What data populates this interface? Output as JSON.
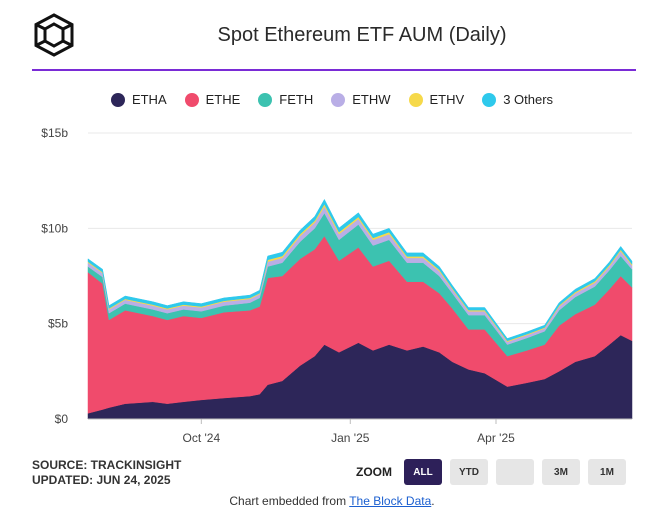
{
  "header": {
    "title": "Spot Ethereum ETF AUM (Daily)"
  },
  "legend": [
    {
      "label": "ETHA",
      "color": "#2d2659"
    },
    {
      "label": "ETHE",
      "color": "#f04b6c"
    },
    {
      "label": "FETH",
      "color": "#3cc2b0"
    },
    {
      "label": "ETHW",
      "color": "#b9aee6"
    },
    {
      "label": "ETHV",
      "color": "#f6d94a"
    },
    {
      "label": "3 Others",
      "color": "#2ec9ec"
    }
  ],
  "footer": {
    "source": "SOURCE: TRACKINSIGHT",
    "updated": "UPDATED: JUN 24, 2025",
    "zoom_label": "ZOOM",
    "zoom_buttons": [
      "ALL",
      "YTD",
      "",
      "3M",
      "1M"
    ],
    "embed_prefix": "Chart embedded from ",
    "embed_link": "The Block Data",
    "embed_suffix": "."
  },
  "chart_data": {
    "type": "area",
    "stacked": true,
    "ylim": [
      0,
      15
    ],
    "y_ticks": [
      "$0",
      "$5b",
      "$10b",
      "$15b"
    ],
    "y_tick_values": [
      0,
      5,
      10,
      15
    ],
    "x_ticks": [
      "Oct '24",
      "Jan '25",
      "Apr '25"
    ],
    "x_tick_dates": [
      "2024-10-01",
      "2025-01-01",
      "2025-04-01"
    ],
    "x_range": [
      "2024-07-23",
      "2025-06-24"
    ],
    "grid": true,
    "legend_position": "top",
    "series": [
      {
        "name": "ETHA",
        "color": "#2d2659",
        "points": [
          [
            "2024-07-23",
            0.3
          ],
          [
            "2024-08-01",
            0.5
          ],
          [
            "2024-08-05",
            0.6
          ],
          [
            "2024-08-15",
            0.8
          ],
          [
            "2024-09-01",
            0.9
          ],
          [
            "2024-09-10",
            0.8
          ],
          [
            "2024-09-20",
            0.9
          ],
          [
            "2024-10-01",
            1.0
          ],
          [
            "2024-10-15",
            1.1
          ],
          [
            "2024-10-31",
            1.2
          ],
          [
            "2024-11-06",
            1.3
          ],
          [
            "2024-11-11",
            1.8
          ],
          [
            "2024-11-20",
            2.0
          ],
          [
            "2024-12-01",
            2.8
          ],
          [
            "2024-12-10",
            3.3
          ],
          [
            "2024-12-16",
            3.9
          ],
          [
            "2024-12-25",
            3.5
          ],
          [
            "2025-01-06",
            4.0
          ],
          [
            "2025-01-15",
            3.6
          ],
          [
            "2025-01-25",
            3.9
          ],
          [
            "2025-02-05",
            3.6
          ],
          [
            "2025-02-15",
            3.8
          ],
          [
            "2025-02-25",
            3.5
          ],
          [
            "2025-03-05",
            3.0
          ],
          [
            "2025-03-15",
            2.6
          ],
          [
            "2025-03-25",
            2.4
          ],
          [
            "2025-04-08",
            1.7
          ],
          [
            "2025-04-20",
            1.9
          ],
          [
            "2025-05-01",
            2.1
          ],
          [
            "2025-05-10",
            2.5
          ],
          [
            "2025-05-20",
            3.0
          ],
          [
            "2025-06-01",
            3.3
          ],
          [
            "2025-06-10",
            3.9
          ],
          [
            "2025-06-17",
            4.4
          ],
          [
            "2025-06-24",
            4.1
          ]
        ]
      },
      {
        "name": "ETHE",
        "color": "#f04b6c",
        "points": [
          [
            "2024-07-23",
            7.4
          ],
          [
            "2024-08-01",
            6.6
          ],
          [
            "2024-08-05",
            4.6
          ],
          [
            "2024-08-15",
            4.9
          ],
          [
            "2024-09-01",
            4.5
          ],
          [
            "2024-09-10",
            4.4
          ],
          [
            "2024-09-20",
            4.5
          ],
          [
            "2024-10-01",
            4.3
          ],
          [
            "2024-10-15",
            4.5
          ],
          [
            "2024-10-31",
            4.5
          ],
          [
            "2024-11-06",
            4.6
          ],
          [
            "2024-11-11",
            5.6
          ],
          [
            "2024-11-20",
            5.5
          ],
          [
            "2024-12-01",
            5.6
          ],
          [
            "2024-12-10",
            5.6
          ],
          [
            "2024-12-16",
            5.7
          ],
          [
            "2024-12-25",
            4.8
          ],
          [
            "2025-01-06",
            5.0
          ],
          [
            "2025-01-15",
            4.4
          ],
          [
            "2025-01-25",
            4.4
          ],
          [
            "2025-02-05",
            3.6
          ],
          [
            "2025-02-15",
            3.4
          ],
          [
            "2025-02-25",
            3.1
          ],
          [
            "2025-03-05",
            2.8
          ],
          [
            "2025-03-15",
            2.1
          ],
          [
            "2025-03-25",
            2.3
          ],
          [
            "2025-04-08",
            1.6
          ],
          [
            "2025-04-20",
            1.7
          ],
          [
            "2025-05-01",
            1.8
          ],
          [
            "2025-05-10",
            2.4
          ],
          [
            "2025-05-20",
            2.5
          ],
          [
            "2025-06-01",
            2.7
          ],
          [
            "2025-06-10",
            2.9
          ],
          [
            "2025-06-17",
            3.1
          ],
          [
            "2025-06-24",
            2.8
          ]
        ]
      },
      {
        "name": "FETH",
        "color": "#3cc2b0",
        "points": [
          [
            "2024-07-23",
            0.3
          ],
          [
            "2024-08-01",
            0.35
          ],
          [
            "2024-08-05",
            0.35
          ],
          [
            "2024-08-15",
            0.35
          ],
          [
            "2024-09-01",
            0.35
          ],
          [
            "2024-09-10",
            0.35
          ],
          [
            "2024-09-20",
            0.35
          ],
          [
            "2024-10-01",
            0.35
          ],
          [
            "2024-10-15",
            0.35
          ],
          [
            "2024-10-31",
            0.4
          ],
          [
            "2024-11-06",
            0.45
          ],
          [
            "2024-11-11",
            0.6
          ],
          [
            "2024-11-20",
            0.7
          ],
          [
            "2024-12-01",
            0.9
          ],
          [
            "2024-12-10",
            1.1
          ],
          [
            "2024-12-16",
            1.2
          ],
          [
            "2024-12-25",
            1.1
          ],
          [
            "2025-01-06",
            1.2
          ],
          [
            "2025-01-15",
            1.1
          ],
          [
            "2025-01-25",
            1.1
          ],
          [
            "2025-02-05",
            1.0
          ],
          [
            "2025-02-15",
            1.0
          ],
          [
            "2025-02-25",
            0.9
          ],
          [
            "2025-03-05",
            0.8
          ],
          [
            "2025-03-15",
            0.75
          ],
          [
            "2025-03-25",
            0.75
          ],
          [
            "2025-04-08",
            0.6
          ],
          [
            "2025-04-20",
            0.65
          ],
          [
            "2025-05-01",
            0.7
          ],
          [
            "2025-05-10",
            0.8
          ],
          [
            "2025-05-20",
            0.9
          ],
          [
            "2025-06-01",
            0.95
          ],
          [
            "2025-06-10",
            1.0
          ],
          [
            "2025-06-17",
            1.05
          ],
          [
            "2025-06-24",
            0.95
          ]
        ]
      },
      {
        "name": "ETHW",
        "color": "#b9aee6",
        "points": [
          [
            "2024-07-23",
            0.2
          ],
          [
            "2024-08-01",
            0.2
          ],
          [
            "2024-08-05",
            0.2
          ],
          [
            "2024-08-15",
            0.2
          ],
          [
            "2024-09-01",
            0.2
          ],
          [
            "2024-09-10",
            0.2
          ],
          [
            "2024-09-20",
            0.2
          ],
          [
            "2024-10-01",
            0.2
          ],
          [
            "2024-10-15",
            0.2
          ],
          [
            "2024-10-31",
            0.2
          ],
          [
            "2024-11-06",
            0.2
          ],
          [
            "2024-11-11",
            0.25
          ],
          [
            "2024-11-20",
            0.25
          ],
          [
            "2024-12-01",
            0.3
          ],
          [
            "2024-12-10",
            0.3
          ],
          [
            "2024-12-16",
            0.35
          ],
          [
            "2024-12-25",
            0.3
          ],
          [
            "2025-01-06",
            0.3
          ],
          [
            "2025-01-15",
            0.3
          ],
          [
            "2025-01-25",
            0.3
          ],
          [
            "2025-02-05",
            0.25
          ],
          [
            "2025-02-15",
            0.25
          ],
          [
            "2025-02-25",
            0.25
          ],
          [
            "2025-03-05",
            0.2
          ],
          [
            "2025-03-15",
            0.2
          ],
          [
            "2025-03-25",
            0.2
          ],
          [
            "2025-04-08",
            0.15
          ],
          [
            "2025-04-20",
            0.15
          ],
          [
            "2025-05-01",
            0.15
          ],
          [
            "2025-05-10",
            0.2
          ],
          [
            "2025-05-20",
            0.2
          ],
          [
            "2025-06-01",
            0.2
          ],
          [
            "2025-06-10",
            0.2
          ],
          [
            "2025-06-17",
            0.25
          ],
          [
            "2025-06-24",
            0.2
          ]
        ]
      },
      {
        "name": "ETHV",
        "color": "#f6d94a",
        "points": [
          [
            "2024-07-23",
            0.05
          ],
          [
            "2024-08-01",
            0.05
          ],
          [
            "2024-08-05",
            0.05
          ],
          [
            "2024-08-15",
            0.05
          ],
          [
            "2024-09-01",
            0.05
          ],
          [
            "2024-09-10",
            0.05
          ],
          [
            "2024-09-20",
            0.05
          ],
          [
            "2024-10-01",
            0.05
          ],
          [
            "2024-10-15",
            0.05
          ],
          [
            "2024-10-31",
            0.05
          ],
          [
            "2024-11-06",
            0.05
          ],
          [
            "2024-11-11",
            0.1
          ],
          [
            "2024-11-20",
            0.1
          ],
          [
            "2024-12-01",
            0.1
          ],
          [
            "2024-12-10",
            0.1
          ],
          [
            "2024-12-16",
            0.12
          ],
          [
            "2024-12-25",
            0.1
          ],
          [
            "2025-01-06",
            0.1
          ],
          [
            "2025-01-15",
            0.1
          ],
          [
            "2025-01-25",
            0.1
          ],
          [
            "2025-02-05",
            0.08
          ],
          [
            "2025-02-15",
            0.08
          ],
          [
            "2025-02-25",
            0.08
          ],
          [
            "2025-03-05",
            0.06
          ],
          [
            "2025-03-15",
            0.06
          ],
          [
            "2025-03-25",
            0.06
          ],
          [
            "2025-04-08",
            0.05
          ],
          [
            "2025-04-20",
            0.05
          ],
          [
            "2025-05-01",
            0.05
          ],
          [
            "2025-05-10",
            0.06
          ],
          [
            "2025-05-20",
            0.06
          ],
          [
            "2025-06-01",
            0.07
          ],
          [
            "2025-06-10",
            0.07
          ],
          [
            "2025-06-17",
            0.08
          ],
          [
            "2025-06-24",
            0.07
          ]
        ]
      },
      {
        "name": "3 Others",
        "color": "#2ec9ec",
        "points": [
          [
            "2024-07-23",
            0.15
          ],
          [
            "2024-08-01",
            0.15
          ],
          [
            "2024-08-05",
            0.15
          ],
          [
            "2024-08-15",
            0.15
          ],
          [
            "2024-09-01",
            0.15
          ],
          [
            "2024-09-10",
            0.15
          ],
          [
            "2024-09-20",
            0.15
          ],
          [
            "2024-10-01",
            0.15
          ],
          [
            "2024-10-15",
            0.15
          ],
          [
            "2024-10-31",
            0.15
          ],
          [
            "2024-11-06",
            0.15
          ],
          [
            "2024-11-11",
            0.2
          ],
          [
            "2024-11-20",
            0.2
          ],
          [
            "2024-12-01",
            0.2
          ],
          [
            "2024-12-10",
            0.22
          ],
          [
            "2024-12-16",
            0.25
          ],
          [
            "2024-12-25",
            0.22
          ],
          [
            "2025-01-06",
            0.22
          ],
          [
            "2025-01-15",
            0.2
          ],
          [
            "2025-01-25",
            0.2
          ],
          [
            "2025-02-05",
            0.18
          ],
          [
            "2025-02-15",
            0.18
          ],
          [
            "2025-02-25",
            0.17
          ],
          [
            "2025-03-05",
            0.15
          ],
          [
            "2025-03-15",
            0.14
          ],
          [
            "2025-03-25",
            0.14
          ],
          [
            "2025-04-08",
            0.12
          ],
          [
            "2025-04-20",
            0.12
          ],
          [
            "2025-05-01",
            0.12
          ],
          [
            "2025-05-10",
            0.14
          ],
          [
            "2025-05-20",
            0.15
          ],
          [
            "2025-06-01",
            0.15
          ],
          [
            "2025-06-10",
            0.16
          ],
          [
            "2025-06-17",
            0.17
          ],
          [
            "2025-06-24",
            0.16
          ]
        ]
      }
    ]
  }
}
